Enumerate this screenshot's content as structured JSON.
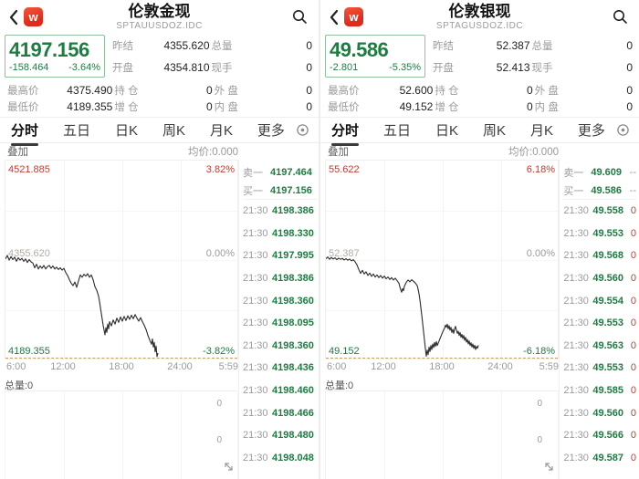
{
  "colors": {
    "green": "#1d7c40",
    "red": "#c23a32",
    "vol_red": "#b0443c",
    "label_gray": "#9b9b9b",
    "dashed": "#c9a063",
    "logo_red": "#e02a1c"
  },
  "panels": [
    {
      "header": {
        "title": "伦敦金现",
        "code": "SPTAUUSDOZ.IDC"
      },
      "quote": {
        "last": "4197.156",
        "change": "-158.464",
        "change_pct": "-3.64%",
        "fields": [
          {
            "label": "昨结",
            "value": "4355.620"
          },
          {
            "label": "总量",
            "value": "0"
          },
          {
            "label": "开盘",
            "value": "4354.810"
          },
          {
            "label": "现手",
            "value": "0"
          }
        ],
        "stats": [
          {
            "label": "最高价",
            "value": "4375.490"
          },
          {
            "label": "持 仓",
            "value": "0"
          },
          {
            "label": "外 盘",
            "value": "0"
          },
          {
            "label": "最低价",
            "value": "4189.355"
          },
          {
            "label": "增 仓",
            "value": "0"
          },
          {
            "label": "内 盘",
            "value": "0"
          }
        ]
      },
      "tabs": [
        "分时",
        "五日",
        "日K",
        "周K",
        "月K",
        "更多"
      ],
      "selected_tab": "分时",
      "chart_head": {
        "overlay": "叠加",
        "avg": "均价:0.000"
      },
      "chart_data": {
        "type": "line",
        "title": "伦敦金现 分时",
        "x_ticks": [
          "6:00",
          "12:00",
          "18:00",
          "24:00",
          "5:59"
        ],
        "y_top_price": "4521.885",
        "y_top_pct": "3.82%",
        "y_mid_price": "4355.620",
        "y_mid_pct": "0.00%",
        "y_low_price": "4189.355",
        "y_low_pct": "-3.82%",
        "price_top": 4521.885,
        "price_low": 4189.355,
        "grid": "quarter gridlines, dashed line at day low",
        "points": [
          [
            0,
            4356
          ],
          [
            2,
            4362
          ],
          [
            4,
            4354
          ],
          [
            6,
            4360
          ],
          [
            8,
            4355
          ],
          [
            10,
            4359
          ],
          [
            12,
            4352
          ],
          [
            14,
            4358
          ],
          [
            16,
            4354
          ],
          [
            18,
            4357
          ],
          [
            20,
            4352
          ],
          [
            22,
            4356
          ],
          [
            24,
            4350
          ],
          [
            26,
            4355
          ],
          [
            28,
            4351
          ],
          [
            30,
            4349
          ],
          [
            32,
            4341
          ],
          [
            34,
            4347
          ],
          [
            36,
            4339
          ],
          [
            38,
            4344
          ],
          [
            40,
            4340
          ],
          [
            42,
            4345
          ],
          [
            44,
            4339
          ],
          [
            46,
            4343
          ],
          [
            48,
            4345
          ],
          [
            50,
            4340
          ],
          [
            52,
            4344
          ],
          [
            54,
            4339
          ],
          [
            56,
            4342
          ],
          [
            58,
            4338
          ],
          [
            60,
            4341
          ],
          [
            62,
            4337
          ],
          [
            64,
            4340
          ],
          [
            66,
            4333
          ],
          [
            68,
            4328
          ],
          [
            70,
            4321
          ],
          [
            72,
            4315
          ],
          [
            74,
            4311
          ],
          [
            76,
            4317
          ],
          [
            78,
            4308
          ],
          [
            80,
            4319
          ],
          [
            82,
            4329
          ],
          [
            84,
            4325
          ],
          [
            86,
            4330
          ],
          [
            88,
            4327
          ],
          [
            90,
            4331
          ],
          [
            92,
            4325
          ],
          [
            94,
            4329
          ],
          [
            96,
            4321
          ],
          [
            98,
            4309
          ],
          [
            100,
            4303
          ],
          [
            102,
            4293
          ],
          [
            103,
            4284
          ],
          [
            104,
            4274
          ],
          [
            105,
            4264
          ],
          [
            106,
            4254
          ],
          [
            107,
            4244
          ],
          [
            108,
            4236
          ],
          [
            109,
            4228
          ],
          [
            110,
            4240
          ],
          [
            111,
            4232
          ],
          [
            112,
            4246
          ],
          [
            113,
            4238
          ],
          [
            114,
            4250
          ],
          [
            116,
            4243
          ],
          [
            118,
            4253
          ],
          [
            120,
            4246
          ],
          [
            122,
            4256
          ],
          [
            124,
            4249
          ],
          [
            126,
            4258
          ],
          [
            128,
            4251
          ],
          [
            130,
            4259
          ],
          [
            132,
            4252
          ],
          [
            134,
            4260
          ],
          [
            136,
            4254
          ],
          [
            138,
            4261
          ],
          [
            140,
            4255
          ],
          [
            142,
            4262
          ],
          [
            144,
            4256
          ],
          [
            146,
            4251
          ],
          [
            148,
            4257
          ],
          [
            150,
            4250
          ],
          [
            152,
            4244
          ],
          [
            154,
            4237
          ],
          [
            156,
            4227
          ],
          [
            158,
            4219
          ],
          [
            160,
            4212
          ],
          [
            161,
            4221
          ],
          [
            162,
            4207
          ],
          [
            163,
            4215
          ],
          [
            164,
            4199
          ],
          [
            165,
            4209
          ],
          [
            166,
            4191
          ],
          [
            167,
            4197
          ]
        ]
      },
      "order_book": {
        "ask_label": "卖一",
        "ask_price": "4197.464",
        "ask_vol": "--",
        "bid_label": "买一",
        "bid_price": "4197.156",
        "bid_vol": "--"
      },
      "ticks": [
        {
          "time": "21:30",
          "price": "4198.386",
          "vol": "0"
        },
        {
          "time": "21:30",
          "price": "4198.330",
          "vol": "0"
        },
        {
          "time": "21:30",
          "price": "4197.995",
          "vol": "0"
        },
        {
          "time": "21:30",
          "price": "4198.386",
          "vol": "0"
        },
        {
          "time": "21:30",
          "price": "4198.360",
          "vol": "0"
        },
        {
          "time": "21:30",
          "price": "4198.095",
          "vol": "0"
        },
        {
          "time": "21:30",
          "price": "4198.360",
          "vol": "0"
        },
        {
          "time": "21:30",
          "price": "4198.436",
          "vol": "0"
        },
        {
          "time": "21:30",
          "price": "4198.460",
          "vol": "0"
        },
        {
          "time": "21:30",
          "price": "4198.466",
          "vol": "0"
        },
        {
          "time": "21:30",
          "price": "4198.480",
          "vol": "0"
        },
        {
          "time": "21:30",
          "price": "4198.048",
          "vol": "0"
        }
      ],
      "volume": {
        "label": "总量:0",
        "scale": [
          "0",
          "0"
        ]
      }
    },
    {
      "header": {
        "title": "伦敦银现",
        "code": "SPTAGUSDOZ.IDC"
      },
      "quote": {
        "last": "49.586",
        "change": "-2.801",
        "change_pct": "-5.35%",
        "fields": [
          {
            "label": "昨结",
            "value": "52.387"
          },
          {
            "label": "总量",
            "value": "0"
          },
          {
            "label": "开盘",
            "value": "52.413"
          },
          {
            "label": "现手",
            "value": "0"
          }
        ],
        "stats": [
          {
            "label": "最高价",
            "value": "52.600"
          },
          {
            "label": "持 仓",
            "value": "0"
          },
          {
            "label": "外 盘",
            "value": "0"
          },
          {
            "label": "最低价",
            "value": "49.152"
          },
          {
            "label": "增 仓",
            "value": "0"
          },
          {
            "label": "内 盘",
            "value": "0"
          }
        ]
      },
      "tabs": [
        "分时",
        "五日",
        "日K",
        "周K",
        "月K",
        "更多"
      ],
      "selected_tab": "分时",
      "chart_head": {
        "overlay": "叠加",
        "avg": "均价:0.000"
      },
      "chart_data": {
        "type": "line",
        "title": "伦敦银现 分时",
        "x_ticks": [
          "6:00",
          "12:00",
          "18:00",
          "24:00",
          "5:59"
        ],
        "y_top_price": "55.622",
        "y_top_pct": "6.18%",
        "y_mid_price": "52.387",
        "y_mid_pct": "0.00%",
        "y_low_price": "49.152",
        "y_low_pct": "-6.18%",
        "price_top": 55.622,
        "price_low": 49.152,
        "grid": "quarter gridlines, dashed line at day low",
        "points": [
          [
            0,
            52.4
          ],
          [
            2,
            52.46
          ],
          [
            4,
            52.38
          ],
          [
            6,
            52.44
          ],
          [
            8,
            52.39
          ],
          [
            10,
            52.43
          ],
          [
            12,
            52.37
          ],
          [
            14,
            52.42
          ],
          [
            16,
            52.38
          ],
          [
            18,
            52.41
          ],
          [
            20,
            52.36
          ],
          [
            22,
            52.4
          ],
          [
            24,
            52.35
          ],
          [
            26,
            52.39
          ],
          [
            28,
            52.33
          ],
          [
            30,
            52.37
          ],
          [
            32,
            52.3
          ],
          [
            34,
            52.2
          ],
          [
            36,
            52.05
          ],
          [
            38,
            51.92
          ],
          [
            40,
            52.02
          ],
          [
            42,
            51.9
          ],
          [
            44,
            51.97
          ],
          [
            46,
            51.85
          ],
          [
            48,
            51.93
          ],
          [
            50,
            51.82
          ],
          [
            52,
            51.9
          ],
          [
            54,
            51.8
          ],
          [
            56,
            51.87
          ],
          [
            58,
            51.78
          ],
          [
            60,
            51.85
          ],
          [
            62,
            51.76
          ],
          [
            64,
            51.83
          ],
          [
            66,
            51.74
          ],
          [
            68,
            51.8
          ],
          [
            70,
            51.72
          ],
          [
            72,
            51.78
          ],
          [
            74,
            51.7
          ],
          [
            76,
            51.76
          ],
          [
            78,
            51.68
          ],
          [
            80,
            51.6
          ],
          [
            81,
            51.48
          ],
          [
            82,
            51.38
          ],
          [
            83,
            51.3
          ],
          [
            84,
            51.42
          ],
          [
            85,
            51.35
          ],
          [
            86,
            51.5
          ],
          [
            88,
            51.62
          ],
          [
            90,
            51.7
          ],
          [
            92,
            51.64
          ],
          [
            94,
            51.71
          ],
          [
            96,
            51.66
          ],
          [
            98,
            51.6
          ],
          [
            100,
            51.52
          ],
          [
            101,
            51.4
          ],
          [
            102,
            51.25
          ],
          [
            103,
            51.05
          ],
          [
            104,
            50.8
          ],
          [
            105,
            50.55
          ],
          [
            106,
            50.28
          ],
          [
            107,
            50.0
          ],
          [
            108,
            49.72
          ],
          [
            109,
            49.45
          ],
          [
            110,
            49.2
          ],
          [
            111,
            49.4
          ],
          [
            112,
            49.25
          ],
          [
            113,
            49.5
          ],
          [
            114,
            49.35
          ],
          [
            115,
            49.55
          ],
          [
            116,
            49.42
          ],
          [
            117,
            49.6
          ],
          [
            118,
            49.48
          ],
          [
            119,
            49.65
          ],
          [
            120,
            49.52
          ],
          [
            121,
            49.68
          ],
          [
            122,
            49.55
          ],
          [
            124,
            49.7
          ],
          [
            126,
            49.85
          ],
          [
            128,
            50.0
          ],
          [
            130,
            50.12
          ],
          [
            131,
            50.22
          ],
          [
            132,
            50.15
          ],
          [
            133,
            50.25
          ],
          [
            134,
            50.1
          ],
          [
            135,
            50.2
          ],
          [
            136,
            50.05
          ],
          [
            137,
            50.15
          ],
          [
            138,
            49.98
          ],
          [
            139,
            50.08
          ],
          [
            140,
            49.95
          ],
          [
            141,
            50.1
          ],
          [
            142,
            50.18
          ],
          [
            143,
            50.05
          ],
          [
            144,
            49.95
          ],
          [
            145,
            50.02
          ],
          [
            146,
            49.88
          ],
          [
            147,
            49.98
          ],
          [
            148,
            49.82
          ],
          [
            149,
            49.92
          ],
          [
            150,
            49.78
          ],
          [
            151,
            49.88
          ],
          [
            152,
            49.72
          ],
          [
            153,
            49.82
          ],
          [
            154,
            49.66
          ],
          [
            155,
            49.75
          ],
          [
            156,
            49.6
          ],
          [
            157,
            49.7
          ],
          [
            158,
            49.55
          ],
          [
            159,
            49.64
          ],
          [
            160,
            49.5
          ],
          [
            161,
            49.6
          ],
          [
            162,
            49.46
          ],
          [
            163,
            49.56
          ],
          [
            164,
            49.42
          ],
          [
            165,
            49.52
          ],
          [
            166,
            49.46
          ],
          [
            167,
            49.56
          ]
        ]
      },
      "order_book": {
        "ask_label": "卖一",
        "ask_price": "49.609",
        "ask_vol": "--",
        "bid_label": "买一",
        "bid_price": "49.586",
        "bid_vol": "--"
      },
      "ticks": [
        {
          "time": "21:30",
          "price": "49.558",
          "vol": "0"
        },
        {
          "time": "21:30",
          "price": "49.553",
          "vol": "0"
        },
        {
          "time": "21:30",
          "price": "49.568",
          "vol": "0"
        },
        {
          "time": "21:30",
          "price": "49.560",
          "vol": "0"
        },
        {
          "time": "21:30",
          "price": "49.554",
          "vol": "0"
        },
        {
          "time": "21:30",
          "price": "49.553",
          "vol": "0"
        },
        {
          "time": "21:30",
          "price": "49.563",
          "vol": "0"
        },
        {
          "time": "21:30",
          "price": "49.553",
          "vol": "0"
        },
        {
          "time": "21:30",
          "price": "49.585",
          "vol": "0"
        },
        {
          "time": "21:30",
          "price": "49.560",
          "vol": "0"
        },
        {
          "time": "21:30",
          "price": "49.566",
          "vol": "0"
        },
        {
          "time": "21:30",
          "price": "49.587",
          "vol": "0"
        }
      ],
      "volume": {
        "label": "总量:0",
        "scale": [
          "0",
          "0"
        ]
      }
    }
  ]
}
